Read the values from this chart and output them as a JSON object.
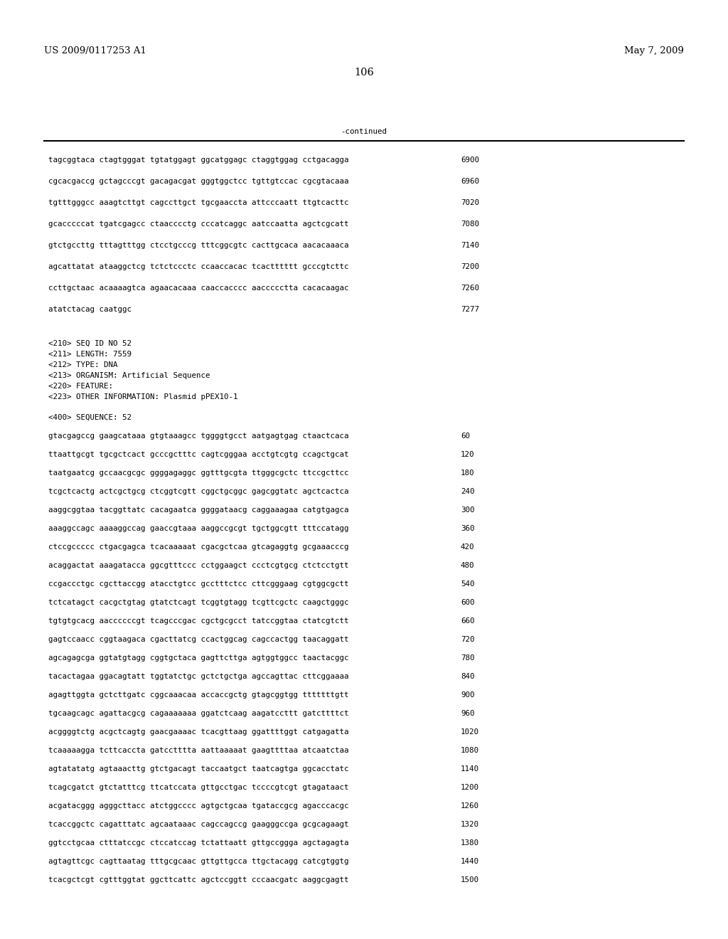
{
  "header_left": "US 2009/0117253 A1",
  "header_right": "May 7, 2009",
  "page_number": "106",
  "continued_label": "-continued",
  "background_color": "#ffffff",
  "text_color": "#000000",
  "font_size_header": 9.5,
  "font_size_body": 7.8,
  "font_size_page": 10.5,
  "sequence_lines_top": [
    [
      "tagcggtaca ctagtgggat tgtatggagt ggcatggagc ctaggtggag cctgacagga",
      "6900"
    ],
    [
      "cgcacgaccg gctagcccgt gacagacgat gggtggctcc tgttgtccac cgcgtacaaa",
      "6960"
    ],
    [
      "tgtttgggcc aaagtcttgt cagccttgct tgcgaaccta attcccaatt ttgtcacttc",
      "7020"
    ],
    [
      "gcacccccat tgatcgagcc ctaacccctg cccatcaggc aatccaatta agctcgcatt",
      "7080"
    ],
    [
      "gtctgccttg tttagtttgg ctcctgcccg tttcggcgtc cacttgcaca aacacaaaca",
      "7140"
    ],
    [
      "agcattatat ataaggctcg tctctccctc ccaaccacac tcactttttt gcccgtcttc",
      "7200"
    ],
    [
      "ccttgctaac acaaaagtca agaacacaaa caaccacccc aaccccctta cacacaagac",
      "7260"
    ],
    [
      "atatctacag caatggc",
      "7277"
    ]
  ],
  "metadata_lines": [
    "<210> SEQ ID NO 52",
    "<211> LENGTH: 7559",
    "<212> TYPE: DNA",
    "<213> ORGANISM: Artificial Sequence",
    "<220> FEATURE:",
    "<223> OTHER INFORMATION: Plasmid pPEX10-1"
  ],
  "sequence_header": "<400> SEQUENCE: 52",
  "sequence_lines_bottom": [
    [
      "gtacgagccg gaagcataaa gtgtaaagcc tggggtgcct aatgagtgag ctaactcaca",
      "60"
    ],
    [
      "ttaattgcgt tgcgctcact gcccgctttc cagtcgggaa acctgtcgtg ccagctgcat",
      "120"
    ],
    [
      "taatgaatcg gccaacgcgc ggggagaggc ggtttgcgta ttgggcgctc ttccgcttcc",
      "180"
    ],
    [
      "tcgctcactg actcgctgcg ctcggtcgtt cggctgcggc gagcggtatc agctcactca",
      "240"
    ],
    [
      "aaggcggtaa tacggttatc cacagaatca ggggataacg caggaaagaa catgtgagca",
      "300"
    ],
    [
      "aaaggccagc aaaaggccag gaaccgtaaa aaggccgcgt tgctggcgtt tttccatagg",
      "360"
    ],
    [
      "ctccgccccc ctgacgagca tcacaaaaat cgacgctcaa gtcagaggtg gcgaaacccg",
      "420"
    ],
    [
      "acaggactat aaagatacca ggcgtttccc cctggaagct ccctcgtgcg ctctcctgtt",
      "480"
    ],
    [
      "ccgaccctgc cgcttaccgg atacctgtcc gcctttctcc cttcgggaag cgtggcgctt",
      "540"
    ],
    [
      "tctcatagct cacgctgtag gtatctcagt tcggtgtagg tcgttcgctc caagctgggc",
      "600"
    ],
    [
      "tgtgtgcacg aaccccccgt tcagcccgac cgctgcgcct tatccggtaa ctatcgtctt",
      "660"
    ],
    [
      "gagtccaacc cggtaagaca cgacttatcg ccactggcag cagccactgg taacaggatt",
      "720"
    ],
    [
      "agcagagcga ggtatgtagg cggtgctaca gagttcttga agtggtggcc taactacggc",
      "780"
    ],
    [
      "tacactagaa ggacagtatt tggtatctgc gctctgctga agccagttac cttcggaaaa",
      "840"
    ],
    [
      "agagttggta gctcttgatc cggcaaacaa accaccgctg gtagcggtgg tttttttgtt",
      "900"
    ],
    [
      "tgcaagcagc agattacgcg cagaaaaaaa ggatctcaag aagatccttt gatcttttct",
      "960"
    ],
    [
      "acggggtctg acgctcagtg gaacgaaaac tcacgttaag ggattttggt catgagatta",
      "1020"
    ],
    [
      "tcaaaaagga tcttcaccta gatcctttta aattaaaaat gaagttttaa atcaatctaa",
      "1080"
    ],
    [
      "agtatatatg agtaaacttg gtctgacagt taccaatgct taatcagtga ggcacctatc",
      "1140"
    ],
    [
      "tcagcgatct gtctatttcg ttcatccata gttgcctgac tccccgtcgt gtagataact",
      "1200"
    ],
    [
      "acgatacggg agggcttacc atctggcccc agtgctgcaa tgataccgcg agacccacgc",
      "1260"
    ],
    [
      "tcaccggctc cagatttatc agcaataaac cagccagccg gaagggccga gcgcagaagt",
      "1320"
    ],
    [
      "ggtcctgcaa ctttatccgc ctccatccag tctattaatt gttgccggga agctagagta",
      "1380"
    ],
    [
      "agtagttcgc cagttaatag tttgcgcaac gttgttgcca ttgctacagg catcgtggtg",
      "1440"
    ],
    [
      "tcacgctcgt cgtttggtat ggcttcattc agctccggtt cccaacgatc aaggcgagtt",
      "1500"
    ]
  ]
}
